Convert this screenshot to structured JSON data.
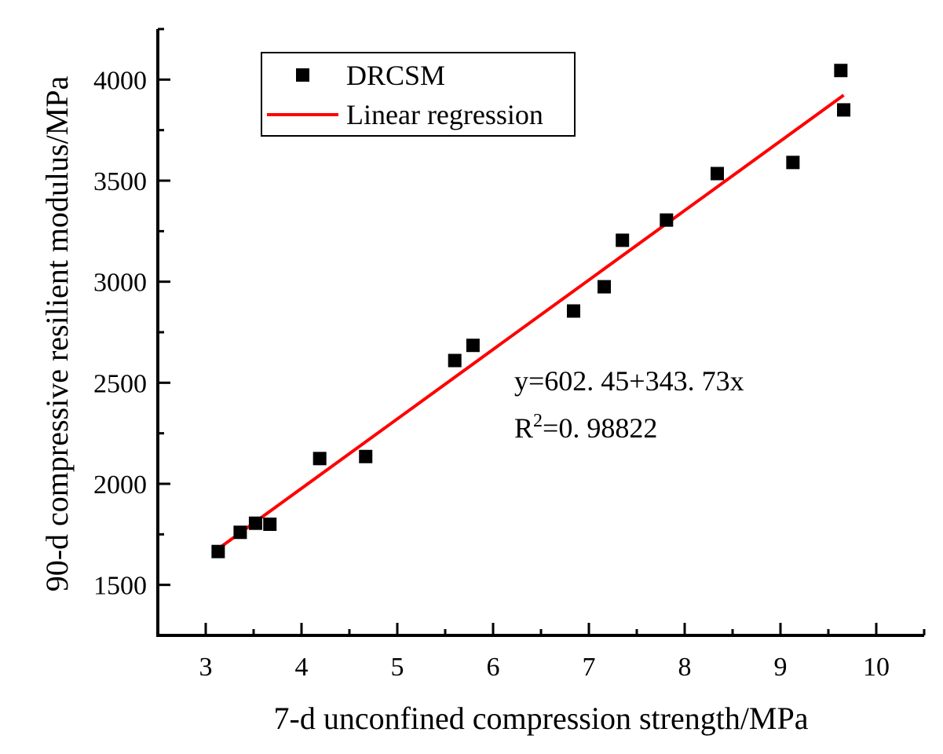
{
  "chart_data": {
    "type": "scatter",
    "title": "",
    "xlabel": "7-d unconfined compression strength/MPa",
    "ylabel": "90-d compressive resilient modulus/MPa",
    "xlim": [
      2.5,
      10.5
    ],
    "ylim": [
      1250,
      4250
    ],
    "x_ticks": [
      3,
      4,
      5,
      6,
      7,
      8,
      9,
      10
    ],
    "x_tick_labels": [
      "3",
      "4",
      "5",
      "6",
      "7",
      "8",
      "9",
      "10"
    ],
    "y_ticks": [
      1500,
      2000,
      2500,
      3000,
      3500,
      4000
    ],
    "y_tick_labels": [
      "1500",
      "2000",
      "2500",
      "3000",
      "3500",
      "4000"
    ],
    "grid": false,
    "legend_position": "top-left",
    "series": [
      {
        "name": "DRCSM",
        "kind": "scatter",
        "marker": "square",
        "color": "#000000",
        "points": [
          {
            "x": 3.13,
            "y": 1665
          },
          {
            "x": 3.36,
            "y": 1760
          },
          {
            "x": 3.52,
            "y": 1805
          },
          {
            "x": 3.67,
            "y": 1800
          },
          {
            "x": 4.19,
            "y": 2125
          },
          {
            "x": 4.67,
            "y": 2135
          },
          {
            "x": 5.6,
            "y": 2610
          },
          {
            "x": 5.79,
            "y": 2685
          },
          {
            "x": 6.84,
            "y": 2855
          },
          {
            "x": 7.16,
            "y": 2975
          },
          {
            "x": 7.35,
            "y": 3205
          },
          {
            "x": 7.81,
            "y": 3305
          },
          {
            "x": 8.34,
            "y": 3535
          },
          {
            "x": 9.13,
            "y": 3590
          },
          {
            "x": 9.63,
            "y": 4045
          },
          {
            "x": 9.66,
            "y": 3850
          }
        ]
      },
      {
        "name": "Linear regression",
        "kind": "line",
        "color": "#ff0000",
        "intercept": 602.45,
        "slope": 343.73,
        "x_range": [
          3.13,
          9.66
        ]
      }
    ],
    "annotations": {
      "equation": "y=602. 45+343. 73x",
      "r2_prefix": "R",
      "r2_superscript": "2",
      "r2_value": "=0. 98822"
    }
  }
}
